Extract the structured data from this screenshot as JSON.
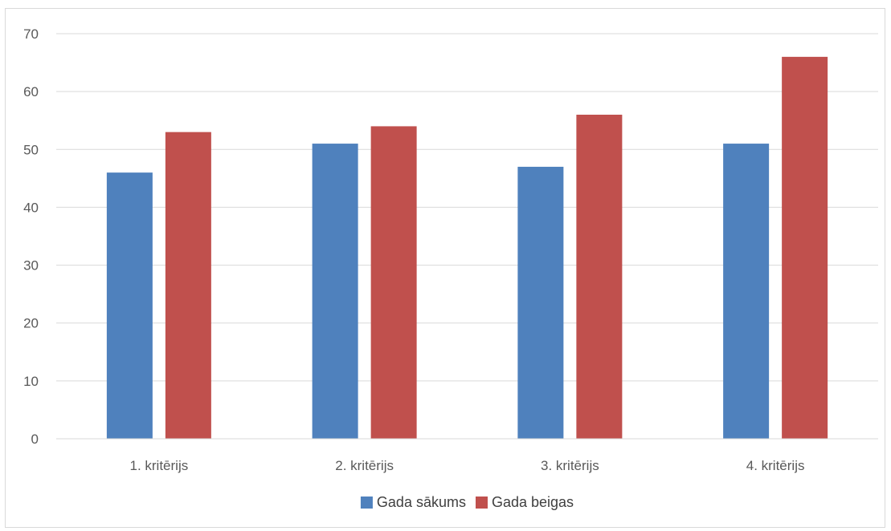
{
  "chart_data": {
    "type": "bar",
    "categories": [
      "1. kritērijs",
      "2. kritērijs",
      "3. kritērijs",
      "4. kritērijs"
    ],
    "series": [
      {
        "name": "Gada sākums",
        "values": [
          46,
          51,
          47,
          51
        ],
        "color": "#4f81bd"
      },
      {
        "name": "Gada beigas",
        "values": [
          53,
          54,
          56,
          66
        ],
        "color": "#c0504d"
      }
    ],
    "ylim": [
      0,
      70
    ],
    "yticks": [
      0,
      10,
      20,
      30,
      40,
      50,
      60,
      70
    ],
    "grid": true,
    "legend_position": "bottom"
  }
}
